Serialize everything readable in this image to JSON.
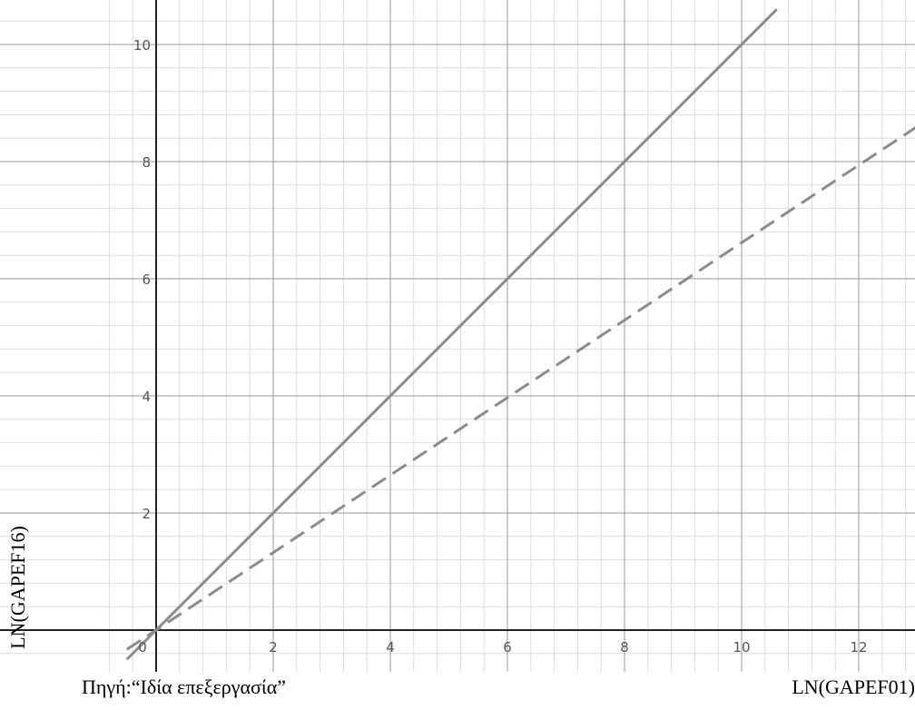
{
  "chart_data": {
    "type": "line",
    "title": "",
    "xlabel": "LN(GAPEF01)",
    "ylabel": "LN(GAPEF16)",
    "source_note": "Πηγή:“Ιδία επεξεργασία”",
    "xlim": [
      -0.5,
      13.0
    ],
    "ylim": [
      -0.6,
      10.4
    ],
    "x_ticks": [
      0,
      2,
      4,
      6,
      8,
      10,
      12
    ],
    "y_ticks": [
      2,
      4,
      6,
      8,
      10
    ],
    "x_tick_labels": [
      "0",
      "2",
      "4",
      "6",
      "8",
      "10",
      "12"
    ],
    "y_tick_labels": [
      "2",
      "4",
      "6",
      "8",
      "10"
    ],
    "grid": true,
    "minor_grid_step": 0.4,
    "series": [
      {
        "style": "solid",
        "x": [
          -0.5,
          10.6
        ],
        "y": [
          -0.5,
          10.6
        ],
        "slope": 1.0
      },
      {
        "style": "dashed",
        "x": [
          -0.5,
          13.0
        ],
        "y": [
          -0.33,
          8.6
        ],
        "slope": 0.66
      }
    ],
    "colors": {
      "major_grid": "#999999",
      "minor_grid": "#dddddd",
      "axis": "#222222",
      "series": "#8c8c8c"
    }
  }
}
